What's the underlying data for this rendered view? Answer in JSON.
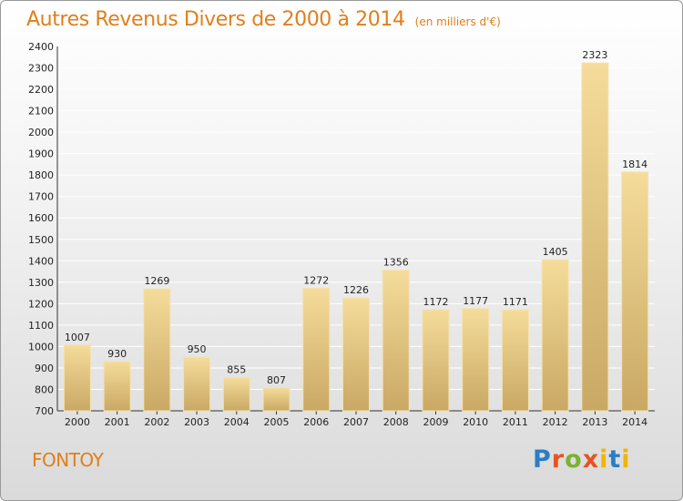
{
  "title": "Autres Revenus Divers de 2000 à 2014",
  "subtitle": "(en milliers d'€)",
  "place": "FONTOY",
  "logo": {
    "text": "Proxiti",
    "letters": [
      "P",
      "r",
      "o",
      "x",
      "i",
      "t",
      "i"
    ]
  },
  "chart_data": {
    "type": "bar",
    "title": "Autres Revenus Divers de 2000 à 2014",
    "subtitle": "(en milliers d'€)",
    "categories": [
      "2000",
      "2001",
      "2002",
      "2003",
      "2004",
      "2005",
      "2006",
      "2007",
      "2008",
      "2009",
      "2010",
      "2011",
      "2012",
      "2013",
      "2014"
    ],
    "values": [
      1007,
      930,
      1269,
      950,
      855,
      807,
      1272,
      1226,
      1356,
      1172,
      1177,
      1171,
      1405,
      2323,
      1814
    ],
    "ylim": [
      700,
      2400
    ],
    "yticks": [
      700,
      800,
      900,
      1000,
      1100,
      1200,
      1300,
      1400,
      1500,
      1600,
      1700,
      1800,
      1900,
      2000,
      2100,
      2200,
      2300,
      2400
    ],
    "grid": true,
    "xlabel": "",
    "ylabel": "",
    "colors": {
      "bar_light": "#f5dc9a",
      "bar_dark": "#c9a864",
      "grid": "#ffffff",
      "accent": "#e07f1c"
    }
  }
}
